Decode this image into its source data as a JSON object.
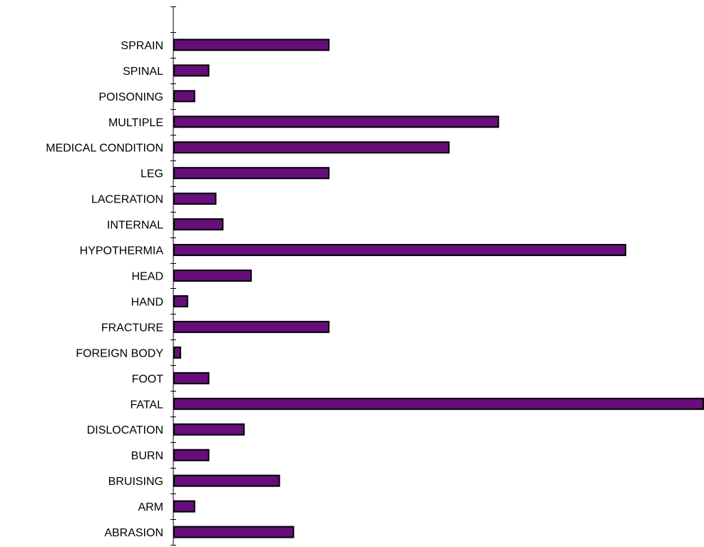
{
  "chart_data": {
    "type": "bar",
    "orientation": "horizontal",
    "categories": [
      "ABRASION",
      "ARM",
      "BRUISING",
      "BURN",
      "DISLOCATION",
      "FATAL",
      "FOOT",
      "FOREIGN BODY",
      "FRACTURE",
      "HAND",
      "HEAD",
      "HYPOTHERMIA",
      "INTERNAL",
      "LACERATION",
      "LEG",
      "MEDICAL CONDITION",
      "MULTIPLE",
      "POISONING",
      "SPINAL",
      "SPRAIN"
    ],
    "values": [
      17,
      3,
      15,
      5,
      10,
      75,
      5,
      1,
      22,
      2,
      11,
      64,
      7,
      6,
      22,
      39,
      46,
      3,
      5,
      22
    ],
    "xlim": [
      0,
      75
    ],
    "title": "",
    "xlabel": "",
    "ylabel": "",
    "grid": false,
    "legend": "none",
    "bar_color": "#660e7a",
    "bar_edge_color": "#000000"
  }
}
